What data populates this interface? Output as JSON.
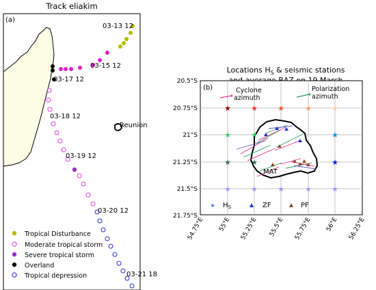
{
  "left_panel": {
    "title": "Track eliakim",
    "panel_label": "(a)",
    "place_label": "Reunion",
    "date_labels": [
      "03-13 12",
      "03-15 12",
      "03-17 12",
      "03-18 12",
      "03-19 12",
      "03-20 12",
      "03-21 18"
    ],
    "legend": [
      {
        "label": "Tropical Disturbance",
        "color": "#b5bd00",
        "style": "filled"
      },
      {
        "label": "Moderate tropical storm",
        "color": "#e040d8",
        "style": "open"
      },
      {
        "label": "Severe tropical storm",
        "color": "#9b30c8",
        "style": "filled"
      },
      {
        "label": "Overland",
        "color": "#000000",
        "style": "filled"
      },
      {
        "label": "Tropical depression",
        "color": "#2b2bdc",
        "style": "open"
      }
    ],
    "colors": {
      "land": "#fdfde6",
      "tropical_disturbance": "#b5bd00",
      "moderate_storm": "#e040d8",
      "storm_filled": "#e020c8",
      "severe_storm": "#9b30c8",
      "overland": "#000000",
      "depression": "#2b2bdc"
    }
  },
  "right_panel": {
    "title_line1": "Locations H",
    "title_sub": "S",
    "title_line1_tail": " & seismic stations",
    "title_line2": "and average BAZ on 19 March",
    "panel_label": "(b)",
    "arrow_legend": [
      {
        "label_line1": "Cyclone",
        "label_line2": "azimuth",
        "color": "#e8309a"
      },
      {
        "label_line1": "Polarization",
        "label_line2": "azimuth",
        "color": "#2e9e5c"
      }
    ],
    "station_label": "MAT",
    "marker_legend": [
      {
        "label": "H",
        "sub": "S",
        "color": "#3a6ee0",
        "marker": "star"
      },
      {
        "label": "ZF",
        "color": "#1f2fd0",
        "marker": "triangle"
      },
      {
        "label": "PF",
        "color": "#8b4a1a",
        "marker": "triangle"
      }
    ],
    "y_tick_labels": [
      "20.5°S",
      "20.75°S",
      "21°S",
      "21.25°S",
      "21.5°S",
      "21.75°S"
    ],
    "x_tick_labels": [
      "54.75°E",
      "55°E",
      "55.25°E",
      "55.5°E",
      "55.75°E",
      "56°E",
      "56.25°E"
    ],
    "star_colors": [
      [
        "#8b0000",
        "#ff3030",
        "#ff4f30",
        "#ff9a60",
        "#ffc8a0"
      ],
      [
        "#3cc86a",
        "#30d070",
        "#40a0ff",
        "#5fa0e8",
        "#1a90e0"
      ],
      [
        "#2f6f58",
        "#2f6f58",
        "#4f8fff",
        "#2050ff",
        "#1020e0"
      ],
      [
        "#9a9aff",
        "#9a9aff",
        "#9a9aff",
        "#9a9aff",
        "#9a9aff"
      ]
    ]
  }
}
